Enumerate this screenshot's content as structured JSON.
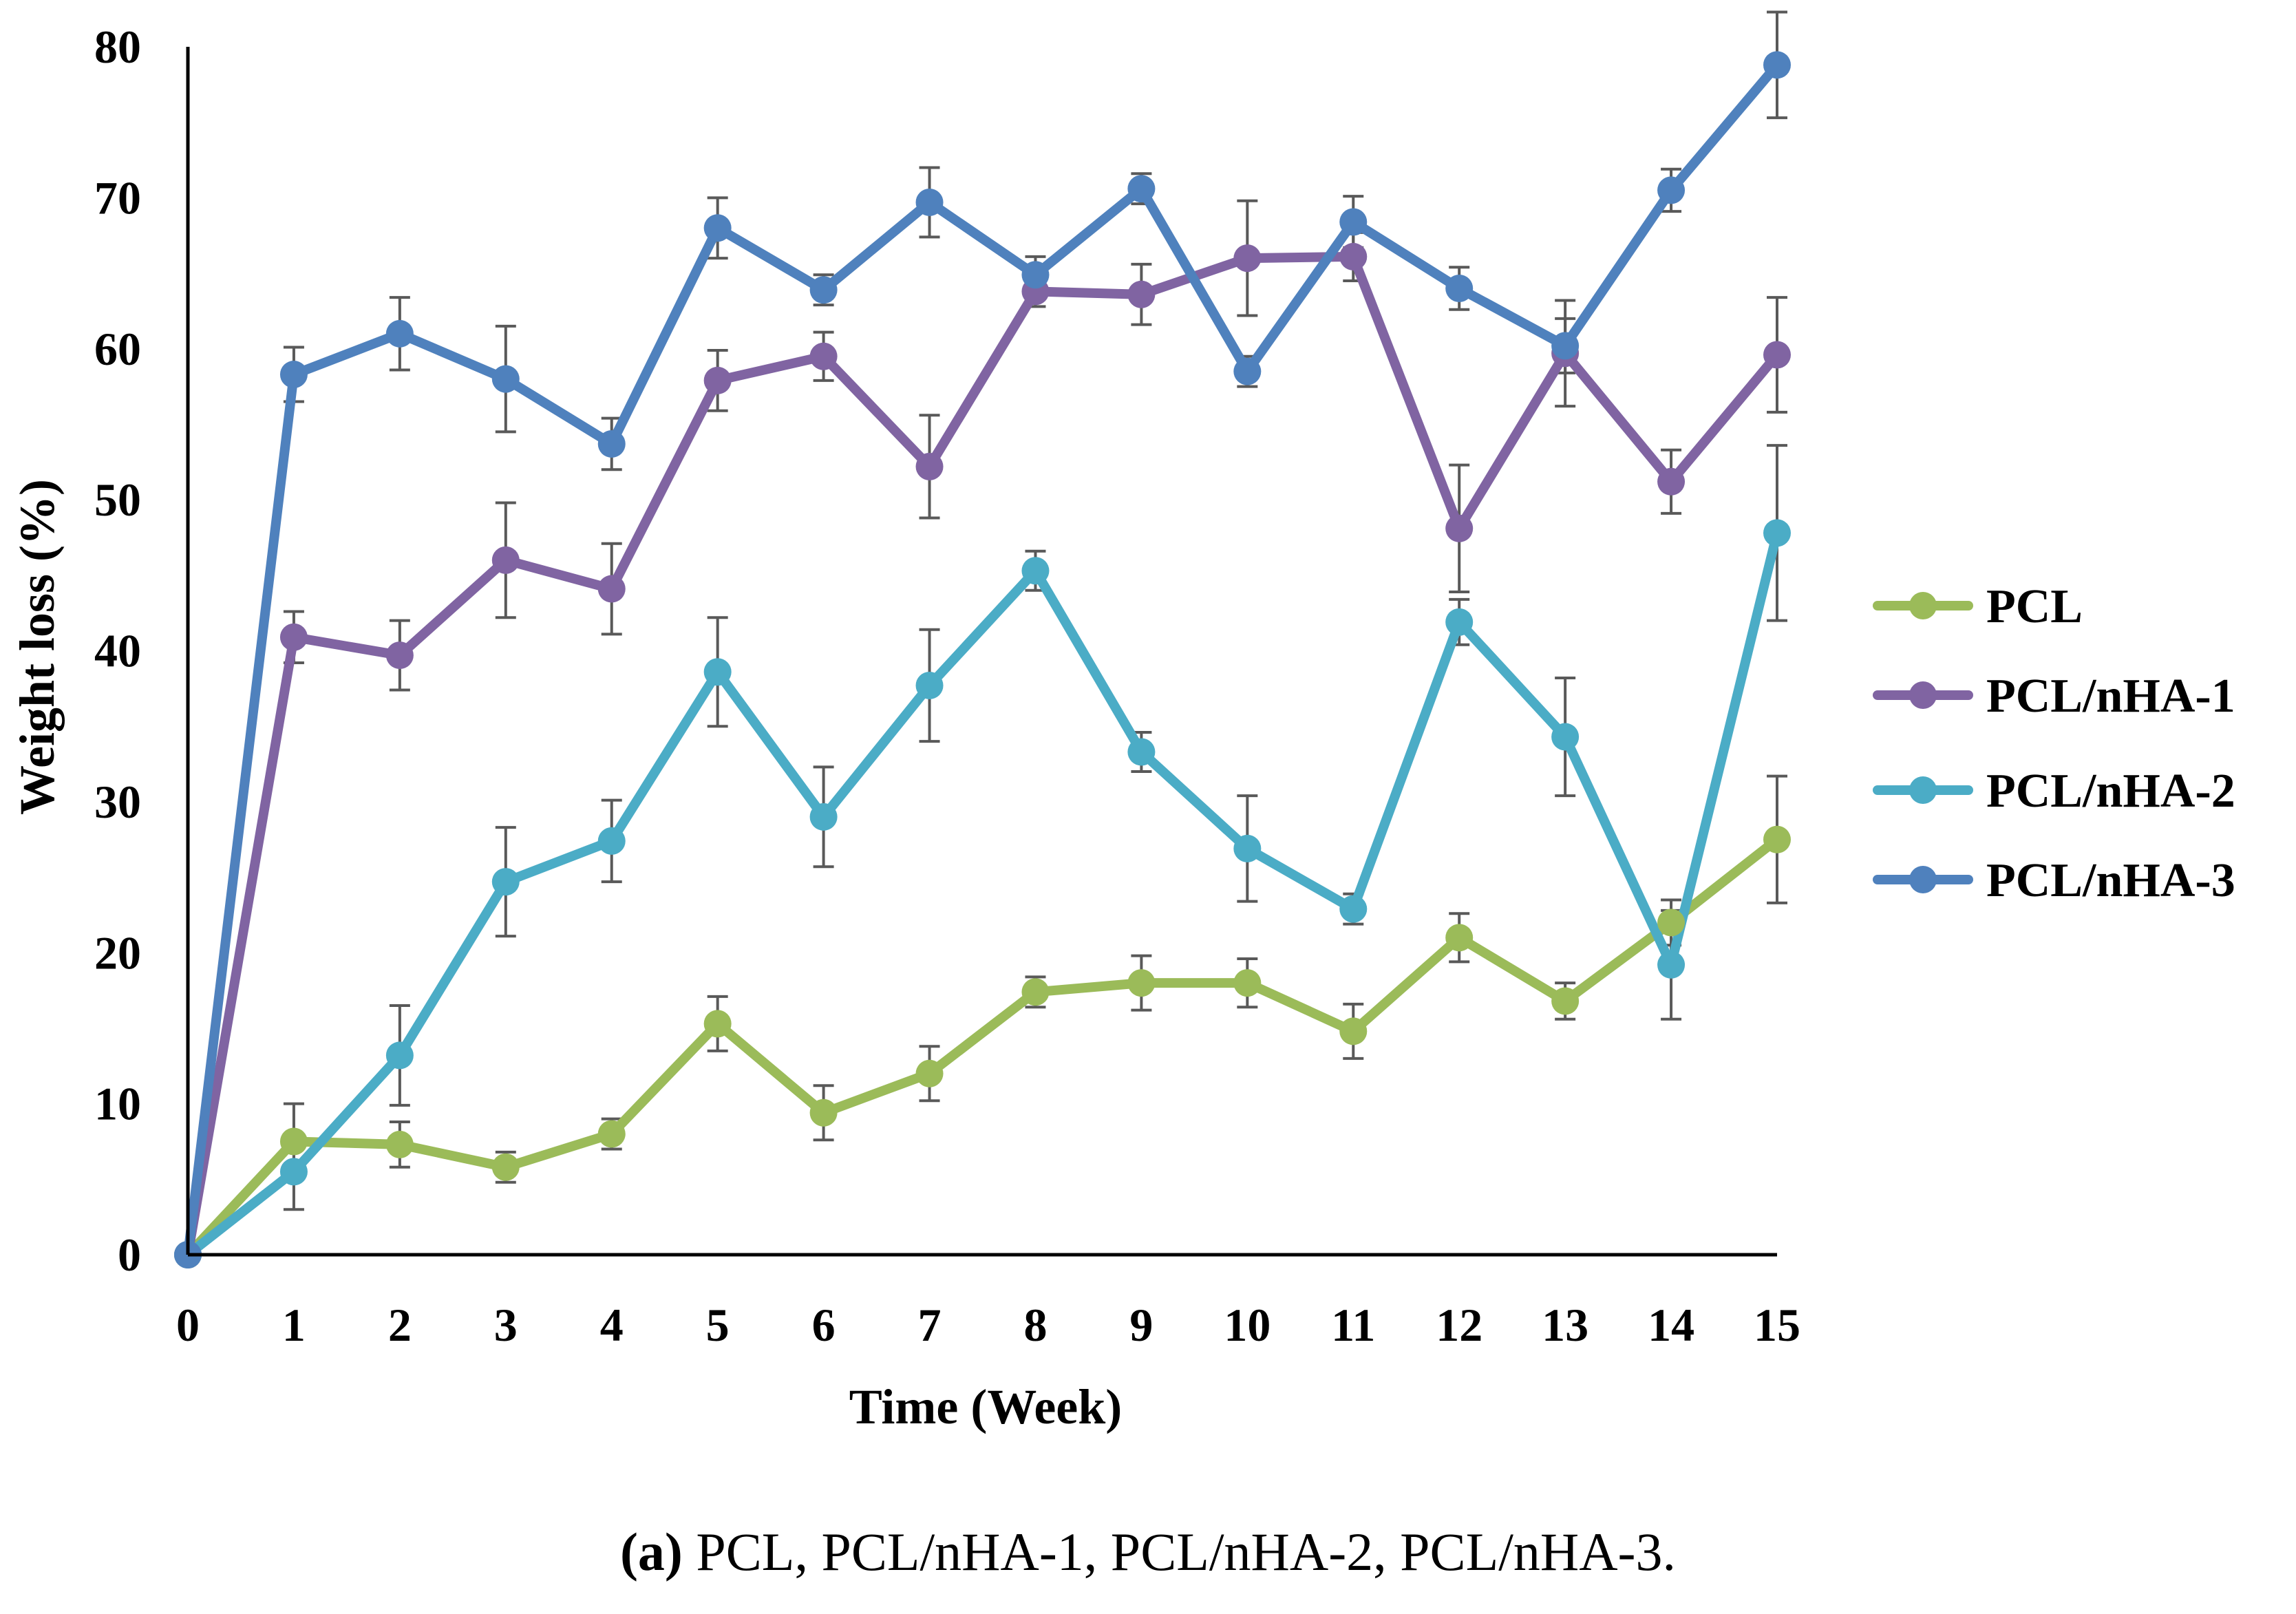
{
  "chart_data": {
    "type": "line",
    "title": "",
    "xlabel": "Time (Week)",
    "ylabel": "Weight loss (%)",
    "xlim": [
      0,
      15
    ],
    "ylim": [
      0,
      80
    ],
    "grid": false,
    "legend_position": "right",
    "x": [
      0,
      1,
      2,
      3,
      4,
      5,
      6,
      7,
      8,
      9,
      10,
      11,
      12,
      13,
      14,
      15
    ],
    "x_tick_labels": [
      "0",
      "1",
      "2",
      "3",
      "4",
      "5",
      "6",
      "7",
      "8",
      "9",
      "10",
      "11",
      "12",
      "13",
      "14",
      "15"
    ],
    "y_ticks": [
      0,
      10,
      20,
      30,
      40,
      50,
      60,
      70,
      80
    ],
    "y_tick_labels": [
      "0",
      "10",
      "20",
      "30",
      "40",
      "50",
      "60",
      "70",
      "80"
    ],
    "series": [
      {
        "name": "PCL",
        "color": "#9bbb59",
        "values": [
          0,
          7.5,
          7.3,
          5.8,
          8.0,
          15.3,
          9.4,
          12.0,
          17.4,
          18.0,
          18.0,
          14.8,
          21.0,
          16.8,
          22.0,
          27.5
        ],
        "errors": [
          0,
          2.5,
          1.5,
          1.0,
          1.0,
          1.8,
          1.8,
          1.8,
          1.0,
          1.8,
          1.6,
          1.8,
          1.6,
          1.2,
          1.5,
          4.2
        ]
      },
      {
        "name": "PCL/nHA-1",
        "color": "#8064a2",
        "values": [
          0,
          40.9,
          39.7,
          46.0,
          44.1,
          57.9,
          59.5,
          52.2,
          63.8,
          63.6,
          66.0,
          66.1,
          48.1,
          59.7,
          51.2,
          59.6
        ],
        "errors": [
          0,
          1.7,
          2.3,
          3.8,
          3.0,
          2.0,
          1.6,
          3.4,
          1.0,
          2.0,
          3.8,
          1.6,
          4.2,
          3.5,
          2.1,
          3.8
        ]
      },
      {
        "name": "PCL/nHA-2",
        "color": "#4bacc6",
        "values": [
          0,
          5.5,
          13.2,
          24.7,
          27.4,
          38.6,
          29.0,
          37.7,
          45.3,
          33.3,
          26.9,
          22.9,
          41.9,
          34.3,
          19.2,
          47.8
        ],
        "errors": [
          0,
          2.5,
          3.3,
          3.6,
          2.7,
          3.6,
          3.3,
          3.7,
          1.3,
          1.3,
          3.5,
          1.0,
          1.5,
          3.9,
          3.6,
          5.8
        ]
      },
      {
        "name": "PCL/nHA-3",
        "color": "#4f81bd",
        "values": [
          0,
          58.3,
          61.0,
          58.0,
          53.7,
          68.0,
          63.9,
          69.7,
          64.9,
          70.6,
          58.5,
          68.4,
          64.0,
          60.2,
          70.5,
          78.8
        ],
        "errors": [
          0,
          1.8,
          2.4,
          3.5,
          1.7,
          2.0,
          1.0,
          2.3,
          1.2,
          1.0,
          1.0,
          1.7,
          1.4,
          1.8,
          1.4,
          3.5
        ]
      }
    ]
  },
  "caption": {
    "label": "(a)",
    "text": " PCL, PCL/nHA-1, PCL/nHA-2, PCL/nHA-3."
  }
}
